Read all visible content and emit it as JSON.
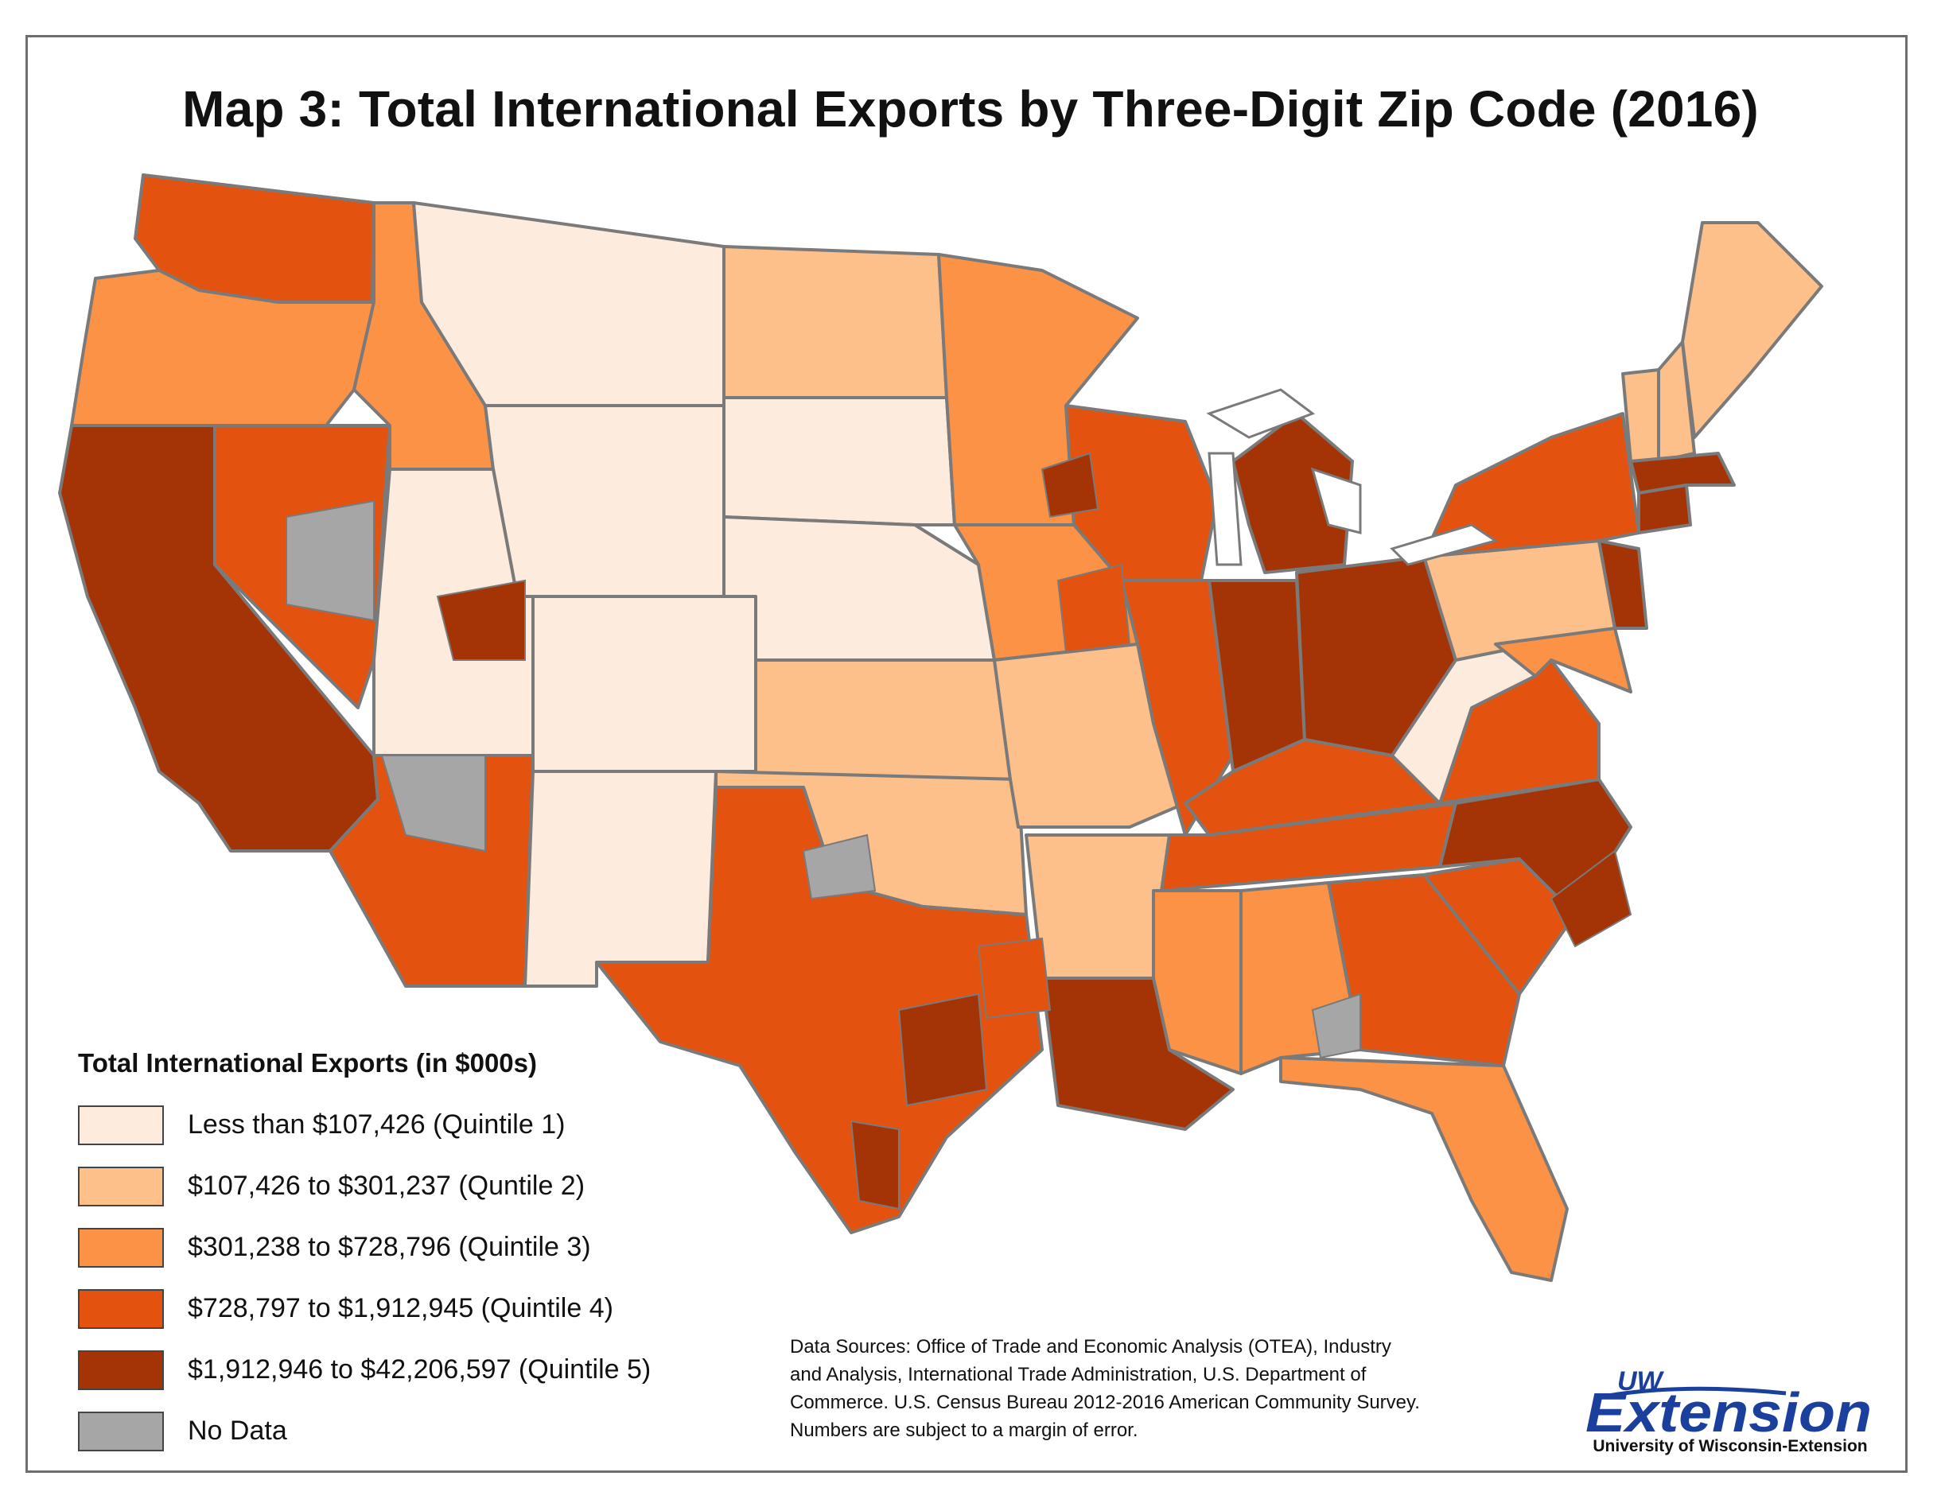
{
  "title": "Map 3: Total International Exports by Three-Digit Zip Code (2016)",
  "legend": {
    "title": "Total International Exports (in $000s)",
    "items": [
      {
        "label": "Less than $107,426 (Quintile 1)",
        "color": "#fdebdd"
      },
      {
        "label": "$107,426 to $301,237 (Quntile 2)",
        "color": "#fdc08a"
      },
      {
        "label": "$301,238 to $728,796 (Quintile 3)",
        "color": "#fb9246"
      },
      {
        "label": "$728,797 to $1,912,945 (Quintile 4)",
        "color": "#e3530f"
      },
      {
        "label": "$1,912,946 to $42,206,597 (Quintile 5)",
        "color": "#a43406"
      },
      {
        "label": "No Data",
        "color": "#a6a6a6"
      }
    ]
  },
  "sources": {
    "lines": [
      "Data Sources: Office of Trade and Economic Analysis (OTEA), Industry",
      "and Analysis, International Trade Administration, U.S. Department of",
      "Commerce. U.S. Census Bureau 2012-2016 American Community Survey.",
      "Numbers are subject to a margin of error."
    ]
  },
  "logo": {
    "top": "UW",
    "main": "Extension",
    "sub": "University of Wisconsin-Extension",
    "color": "#1b3f9c"
  },
  "map": {
    "border_color": "#7a7a7a",
    "regions": [
      {
        "name": "Washington",
        "quintile": 4
      },
      {
        "name": "Oregon",
        "quintile": 3
      },
      {
        "name": "California",
        "quintile": 5
      },
      {
        "name": "Nevada",
        "quintile": 4
      },
      {
        "name": "Idaho",
        "quintile": 3
      },
      {
        "name": "Montana",
        "quintile": 1
      },
      {
        "name": "Wyoming",
        "quintile": 1
      },
      {
        "name": "Utah",
        "quintile": 1
      },
      {
        "name": "Arizona",
        "quintile": 4
      },
      {
        "name": "Colorado",
        "quintile": 1
      },
      {
        "name": "New Mexico",
        "quintile": 1
      },
      {
        "name": "North Dakota",
        "quintile": 2
      },
      {
        "name": "South Dakota",
        "quintile": 1
      },
      {
        "name": "Nebraska",
        "quintile": 1
      },
      {
        "name": "Kansas",
        "quintile": 2
      },
      {
        "name": "Oklahoma",
        "quintile": 2
      },
      {
        "name": "Texas",
        "quintile": 4
      },
      {
        "name": "Minnesota",
        "quintile": 3
      },
      {
        "name": "Iowa",
        "quintile": 3
      },
      {
        "name": "Missouri",
        "quintile": 2
      },
      {
        "name": "Arkansas",
        "quintile": 2
      },
      {
        "name": "Louisiana",
        "quintile": 5
      },
      {
        "name": "Wisconsin",
        "quintile": 4
      },
      {
        "name": "Illinois",
        "quintile": 4
      },
      {
        "name": "Michigan",
        "quintile": 5
      },
      {
        "name": "Indiana",
        "quintile": 5
      },
      {
        "name": "Ohio",
        "quintile": 5
      },
      {
        "name": "Kentucky",
        "quintile": 4
      },
      {
        "name": "Tennessee",
        "quintile": 4
      },
      {
        "name": "Mississippi",
        "quintile": 3
      },
      {
        "name": "Alabama",
        "quintile": 3
      },
      {
        "name": "Georgia",
        "quintile": 4
      },
      {
        "name": "Florida",
        "quintile": 3
      },
      {
        "name": "South Carolina",
        "quintile": 4
      },
      {
        "name": "North Carolina",
        "quintile": 5
      },
      {
        "name": "Virginia",
        "quintile": 4
      },
      {
        "name": "West Virginia",
        "quintile": 1
      },
      {
        "name": "Pennsylvania",
        "quintile": 2
      },
      {
        "name": "New York",
        "quintile": 4
      },
      {
        "name": "Vermont",
        "quintile": 2
      },
      {
        "name": "New Hampshire",
        "quintile": 2
      },
      {
        "name": "Maine",
        "quintile": 2
      },
      {
        "name": "Massachusetts",
        "quintile": 5
      },
      {
        "name": "Connecticut",
        "quintile": 5
      },
      {
        "name": "New Jersey",
        "quintile": 5
      },
      {
        "name": "Maryland",
        "quintile": 3
      }
    ]
  }
}
